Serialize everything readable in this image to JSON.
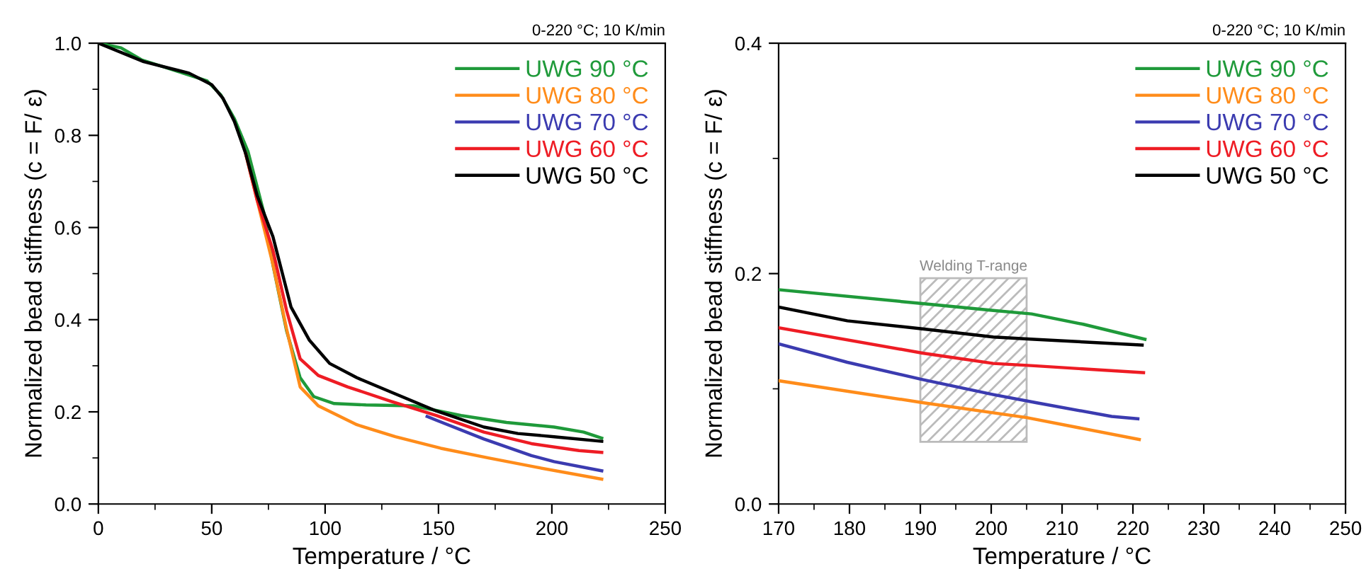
{
  "chart_data": [
    {
      "type": "line",
      "xlabel": "Temperature / °C",
      "ylabel": "Normalized bead stiffness (c = F/ ε)",
      "annotations": [
        "0-220 °C; 10 K/min"
      ],
      "legend": "top right",
      "grid": false,
      "marker": "none",
      "line_style": "solid",
      "xlim": [
        0,
        250
      ],
      "xticks": [
        0,
        {
          "value": 25,
          "label": null
        },
        50,
        {
          "value": 75,
          "label": null
        },
        100,
        {
          "value": 125,
          "label": null
        },
        150,
        {
          "value": 175,
          "label": null
        },
        200,
        {
          "value": 225,
          "label": null
        },
        250
      ],
      "ylim": [
        0,
        1.0
      ],
      "yticks": [
        {
          "value": 0,
          "label": "0.0"
        },
        {
          "value": 0.1,
          "label": null
        },
        0.2,
        {
          "value": 0.3,
          "label": null
        },
        0.4,
        {
          "value": 0.5,
          "label": null
        },
        0.6,
        {
          "value": 0.7,
          "label": null
        },
        0.8,
        {
          "value": 0.9,
          "label": null
        },
        {
          "value": 1.0,
          "label": "1.0"
        }
      ],
      "series": [
        {
          "name": "UWG 90 °C",
          "color": "#1f9a3a",
          "x": [
            0,
            10,
            19,
            35,
            48,
            54,
            60,
            66,
            73,
            77,
            83,
            89,
            95,
            104,
            118,
            139,
            160,
            180,
            201,
            214,
            222
          ],
          "values": [
            1.0,
            0.99,
            0.964,
            0.939,
            0.918,
            0.888,
            0.836,
            0.765,
            0.632,
            0.519,
            0.376,
            0.274,
            0.233,
            0.218,
            0.215,
            0.213,
            0.192,
            0.177,
            0.167,
            0.156,
            0.143
          ]
        },
        {
          "name": "UWG 80 °C",
          "color": "#ff8c1a",
          "x": [
            65,
            70,
            77,
            83,
            89,
            97,
            114,
            131,
            151,
            172,
            193,
            222
          ],
          "values": [
            0.76,
            0.66,
            0.52,
            0.38,
            0.254,
            0.213,
            0.172,
            0.146,
            0.121,
            0.1,
            0.08,
            0.054
          ]
        },
        {
          "name": "UWG 70 °C",
          "color": "#3b3bb0",
          "x": [
            145,
            149,
            170,
            191,
            201,
            222
          ],
          "values": [
            0.19,
            0.182,
            0.141,
            0.105,
            0.092,
            0.072
          ]
        },
        {
          "name": "UWG 60 °C",
          "color": "#ee1c24",
          "x": [
            65,
            70,
            77,
            83,
            89,
            97,
            110,
            129,
            149,
            170,
            191,
            212,
            222
          ],
          "values": [
            0.76,
            0.66,
            0.55,
            0.42,
            0.315,
            0.279,
            0.254,
            0.223,
            0.192,
            0.156,
            0.131,
            0.116,
            0.112
          ]
        },
        {
          "name": "UWG 50 °C",
          "color": "#000000",
          "x": [
            0,
            20,
            40,
            50,
            55,
            60,
            65,
            70,
            77,
            85,
            93,
            102,
            114,
            129,
            149,
            170,
            185,
            201,
            222
          ],
          "values": [
            1.0,
            0.96,
            0.935,
            0.91,
            0.88,
            0.83,
            0.76,
            0.67,
            0.58,
            0.427,
            0.356,
            0.305,
            0.274,
            0.243,
            0.202,
            0.167,
            0.153,
            0.146,
            0.136
          ]
        }
      ]
    },
    {
      "type": "line",
      "xlabel": "Temperature / °C",
      "ylabel": "Normalized bead stiffness (c = F/ ε)",
      "annotations": [
        "0-220 °C; 10 K/min"
      ],
      "legend": "top right",
      "grid": false,
      "marker": "none",
      "line_style": "solid",
      "bands": [
        {
          "axis": "x",
          "from": 190,
          "to": 205,
          "label": "Welding T-range",
          "color": "#bbbbbb"
        }
      ],
      "xlim": [
        170,
        250
      ],
      "xticks": [
        170,
        {
          "value": 175,
          "label": null
        },
        180,
        {
          "value": 185,
          "label": null
        },
        190,
        {
          "value": 195,
          "label": null
        },
        200,
        {
          "value": 205,
          "label": null
        },
        210,
        {
          "value": 215,
          "label": null
        },
        220,
        {
          "value": 225,
          "label": null
        },
        230,
        {
          "value": 235,
          "label": null
        },
        240,
        {
          "value": 245,
          "label": null
        },
        250
      ],
      "ylim": [
        0,
        0.4
      ],
      "yticks": [
        {
          "value": 0,
          "label": "0.0"
        },
        {
          "value": 0.1,
          "label": null
        },
        0.2,
        {
          "value": 0.3,
          "label": null
        },
        0.4
      ],
      "series": [
        {
          "name": "UWG 90 °C",
          "color": "#1f9a3a",
          "x": [
            170,
            190.3,
            200.3,
            205.7,
            213,
            221.7
          ],
          "values": [
            0.186,
            0.174,
            0.168,
            0.165,
            0.156,
            0.143
          ]
        },
        {
          "name": "UWG 80 °C",
          "color": "#ff8c1a",
          "x": [
            170,
            190.3,
            205,
            220.9
          ],
          "values": [
            0.107,
            0.088,
            0.075,
            0.056
          ]
        },
        {
          "name": "UWG 70 °C",
          "color": "#3b3bb0",
          "x": [
            170,
            179.7,
            190.3,
            200.3,
            206.3,
            217,
            220.7
          ],
          "values": [
            0.139,
            0.123,
            0.108,
            0.095,
            0.088,
            0.076,
            0.074
          ]
        },
        {
          "name": "UWG 60 °C",
          "color": "#ee1c24",
          "x": [
            170,
            190.3,
            200.3,
            206,
            221.5
          ],
          "values": [
            0.153,
            0.131,
            0.122,
            0.12,
            0.114
          ]
        },
        {
          "name": "UWG 50 °C",
          "color": "#000000",
          "x": [
            170,
            179.7,
            190.3,
            200.3,
            206,
            221.3
          ],
          "values": [
            0.171,
            0.159,
            0.152,
            0.145,
            0.143,
            0.138
          ]
        }
      ]
    }
  ]
}
